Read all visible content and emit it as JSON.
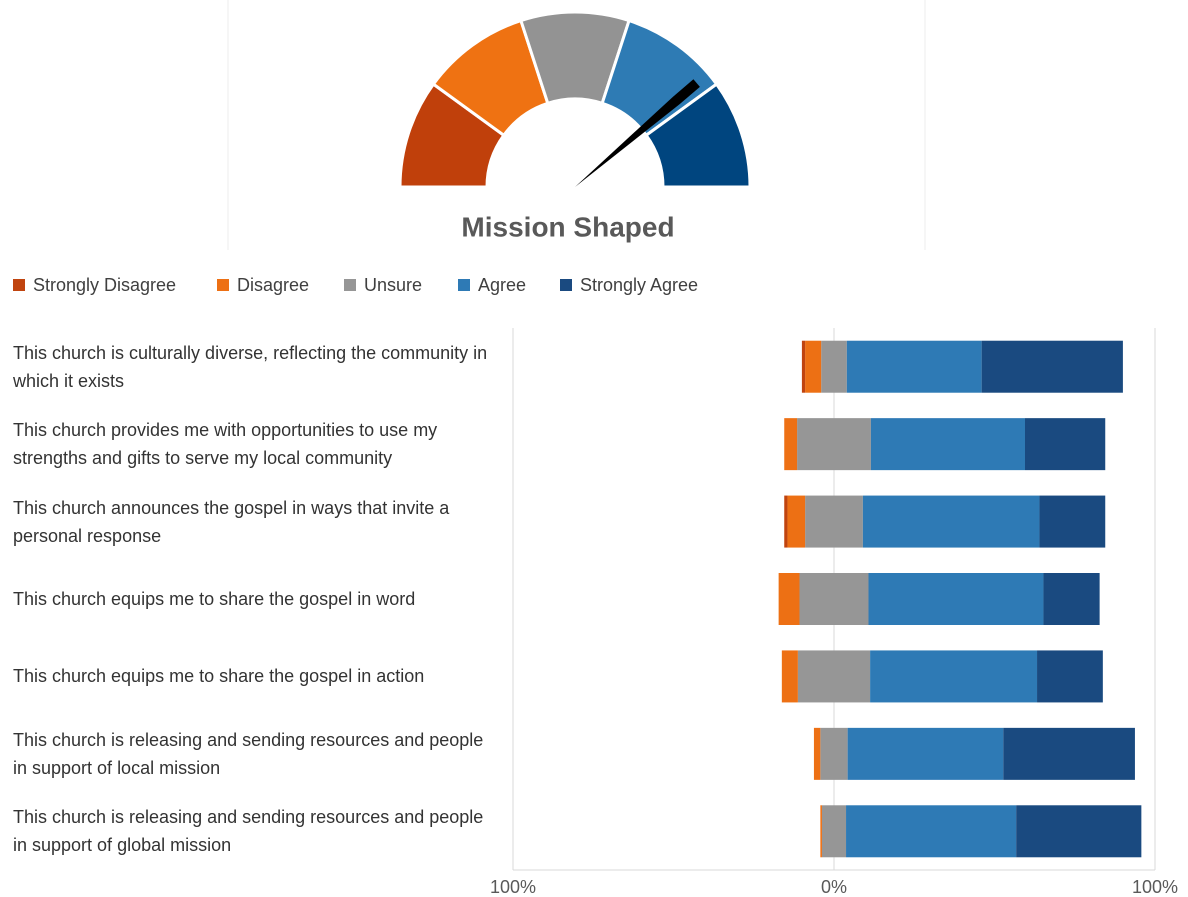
{
  "chart_data": [
    {
      "type": "gauge",
      "title": "Mission Shaped",
      "bands": [
        1,
        1.8,
        2.6,
        3.4,
        4.2,
        5
      ],
      "colors": [
        "#c0400b",
        "#ef7212",
        "#939393",
        "#2e7bb4",
        "#00457f"
      ],
      "value": 4.1
    },
    {
      "type": "diverging_bar",
      "categories": [
        "This church is culturally diverse, reflecting the community in which it exists",
        "This church provides me with opportunities to use my strengths and gifts to serve my local community",
        "This church announces the gospel in ways that invite a personal response",
        "This church equips me to share the gospel in word",
        "This church equips me to share the gospel in action",
        "This church is releasing and sending resources and people in support of local mission",
        "This church is releasing and sending resources and people in support of global mission"
      ],
      "series": [
        {
          "name": "Strongly Disagree",
          "color": "#c0440f",
          "values": [
            1,
            0,
            1,
            0,
            0,
            0,
            0
          ]
        },
        {
          "name": "Disagree",
          "color": "#ed7014",
          "values": [
            5,
            4,
            5.5,
            6.5,
            5,
            2,
            0.5
          ]
        },
        {
          "name": "Unsure",
          "color": "#969696",
          "values": [
            8,
            23,
            18,
            21.5,
            22.5,
            8.5,
            7.5
          ]
        },
        {
          "name": "Agree",
          "color": "#2e7ab5",
          "values": [
            42,
            48,
            55,
            54.5,
            52,
            48.5,
            53
          ]
        },
        {
          "name": "Strongly Agree",
          "color": "#1a4a80",
          "values": [
            44,
            25,
            20.5,
            17.5,
            20.5,
            41,
            39
          ]
        }
      ],
      "xlim": [
        -100,
        100
      ],
      "xticks": [
        {
          "value": -100,
          "label": "100%"
        },
        {
          "value": 0,
          "label": "0%"
        },
        {
          "value": 100,
          "label": "100%"
        }
      ]
    }
  ]
}
